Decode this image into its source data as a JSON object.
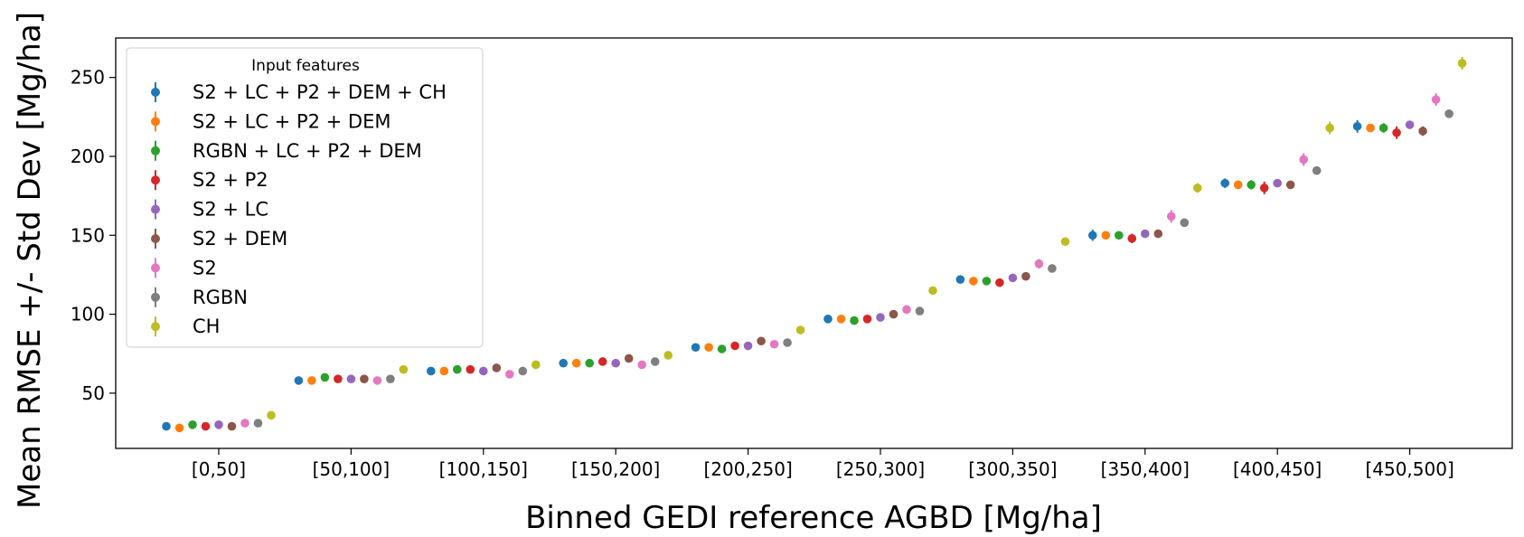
{
  "chart_data": {
    "type": "scatter",
    "xlabel": "Binned GEDI reference AGBD [Mg/ha]",
    "ylabel": "Mean RMSE +/- Std Dev [Mg/ha]",
    "categories": [
      "[0,50]",
      "[50,100]",
      "[100,150]",
      "[150,200]",
      "[200,250]",
      "[250,300]",
      "[300,350]",
      "[350,400]",
      "[400,450]",
      "[450,500]"
    ],
    "ylim": [
      15,
      275
    ],
    "yticks": [
      50,
      100,
      150,
      200,
      250
    ],
    "grid": false,
    "legend": {
      "title": "Input features",
      "placement": "top-left"
    },
    "series": [
      {
        "name": "S2 + LC + P2 + DEM + CH",
        "color": "#1f77b4",
        "values": [
          29,
          58,
          64,
          69,
          79,
          97,
          122,
          150,
          183,
          219
        ],
        "err": [
          1.5,
          1.5,
          1.5,
          1.5,
          1.5,
          1.5,
          2,
          3.5,
          3,
          4
        ]
      },
      {
        "name": "S2 + LC + P2 + DEM",
        "color": "#ff7f0e",
        "values": [
          28,
          58,
          64,
          69,
          79,
          97,
          121,
          150,
          182,
          218
        ],
        "err": [
          1.5,
          1.5,
          1.5,
          1.5,
          1.5,
          1.5,
          2,
          2,
          2,
          2
        ]
      },
      {
        "name": "RGBN + LC + P2 + DEM",
        "color": "#2ca02c",
        "values": [
          30,
          60,
          65,
          69,
          78,
          96,
          121,
          150,
          182,
          218
        ],
        "err": [
          1.5,
          1.5,
          1.5,
          1.5,
          1.5,
          1.5,
          2,
          2,
          3,
          3
        ]
      },
      {
        "name": "S2 + P2",
        "color": "#d62728",
        "values": [
          29,
          59,
          65,
          70,
          80,
          97,
          120,
          148,
          180,
          215
        ],
        "err": [
          1.5,
          1.5,
          1.5,
          1.5,
          1.5,
          1.5,
          2,
          3,
          4,
          4
        ]
      },
      {
        "name": "S2 + LC",
        "color": "#9467bd",
        "values": [
          30,
          59,
          64,
          69,
          80,
          98,
          123,
          151,
          183,
          220
        ],
        "err": [
          1.5,
          1.5,
          1.5,
          1.5,
          1.5,
          1.5,
          2,
          2,
          2,
          2
        ]
      },
      {
        "name": "S2 + DEM",
        "color": "#8c564b",
        "values": [
          29,
          59,
          66,
          72,
          83,
          100,
          124,
          151,
          182,
          216
        ],
        "err": [
          1.5,
          1.5,
          1.5,
          1.5,
          1.5,
          1.5,
          2,
          2,
          2,
          3
        ]
      },
      {
        "name": "S2",
        "color": "#e377c2",
        "values": [
          31,
          58,
          62,
          68,
          81,
          103,
          132,
          162,
          198,
          236
        ],
        "err": [
          1.5,
          1.5,
          2,
          1.5,
          1.5,
          2,
          3,
          4,
          4,
          4
        ]
      },
      {
        "name": "RGBN",
        "color": "#7f7f7f",
        "values": [
          31,
          59,
          64,
          70,
          82,
          102,
          129,
          158,
          191,
          227
        ],
        "err": [
          1.5,
          1.5,
          1.5,
          1.5,
          1.5,
          1.5,
          2,
          2,
          2,
          2
        ]
      },
      {
        "name": "CH",
        "color": "#bcbd22",
        "values": [
          36,
          65,
          68,
          74,
          90,
          115,
          146,
          180,
          218,
          259
        ],
        "err": [
          1.5,
          1.5,
          1.5,
          1.5,
          1.5,
          1.5,
          2,
          3,
          4,
          4
        ]
      }
    ]
  }
}
